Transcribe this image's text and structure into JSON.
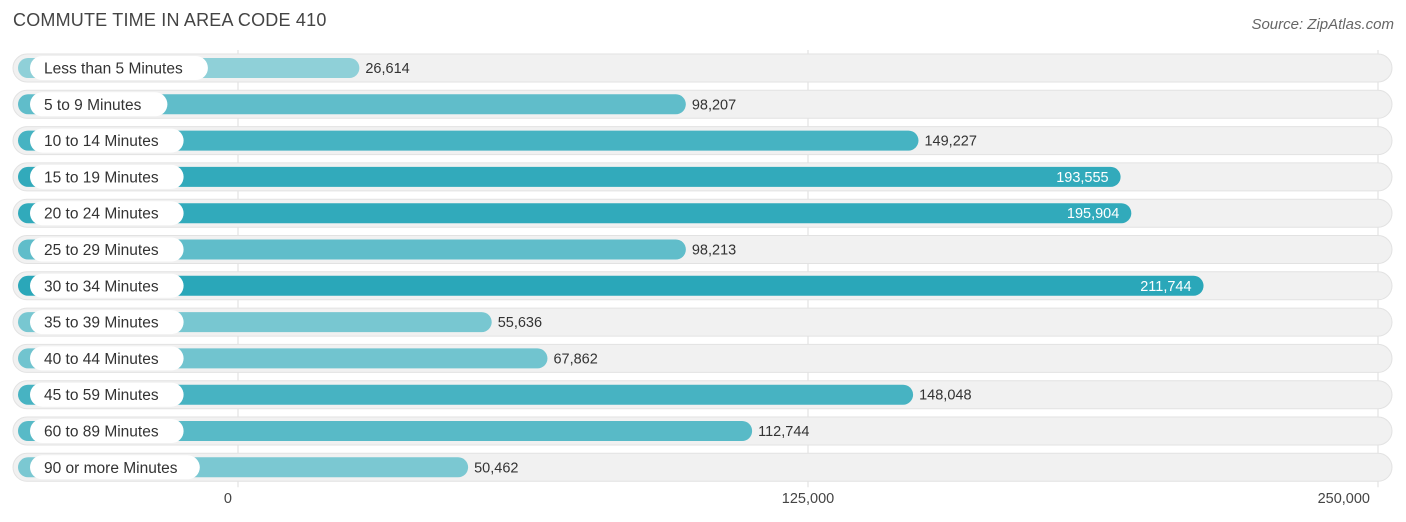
{
  "chart_data": {
    "type": "bar",
    "orientation": "horizontal",
    "title": "COMMUTE TIME IN AREA CODE 410",
    "source": "Source: ZipAtlas.com",
    "categories": [
      "Less than 5 Minutes",
      "5 to 9 Minutes",
      "10 to 14 Minutes",
      "15 to 19 Minutes",
      "20 to 24 Minutes",
      "25 to 29 Minutes",
      "30 to 34 Minutes",
      "35 to 39 Minutes",
      "40 to 44 Minutes",
      "45 to 59 Minutes",
      "60 to 89 Minutes",
      "90 or more Minutes"
    ],
    "values": [
      26614,
      98207,
      149227,
      193555,
      195904,
      98213,
      211744,
      55636,
      67862,
      148048,
      112744,
      50462
    ],
    "value_labels": [
      "26,614",
      "98,207",
      "149,227",
      "193,555",
      "195,904",
      "98,213",
      "211,744",
      "55,636",
      "67,862",
      "148,048",
      "112,744",
      "50,462"
    ],
    "xlim": [
      0,
      250000
    ],
    "xticks": [
      0,
      125000,
      250000
    ],
    "xtick_labels": [
      "0",
      "125,000",
      "250,000"
    ],
    "xlabel": "",
    "ylabel": "",
    "grid": true,
    "colors": {
      "bar_low": "#8fd0d8",
      "bar_high": "#2aa7b9",
      "track": "#f1f1f1",
      "track_border": "#e2e2e2",
      "grid": "#dddddd",
      "value_inside": "#ffffff",
      "value_outside": "#333333"
    }
  }
}
